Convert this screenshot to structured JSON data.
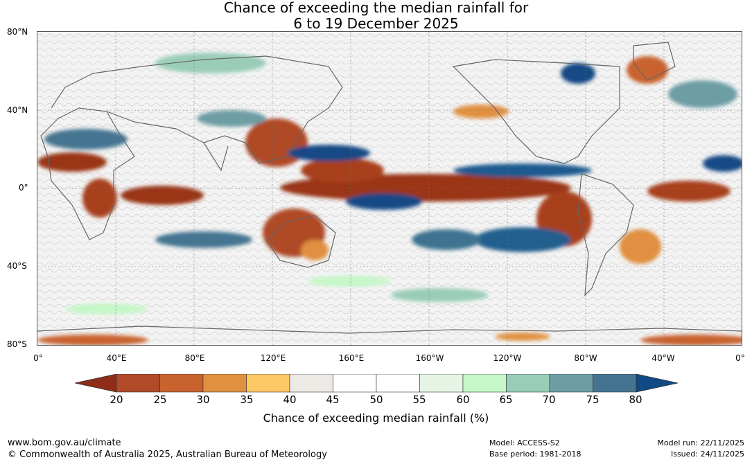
{
  "title": {
    "line1": "Chance of exceeding the median rainfall for",
    "line2": "6 to 19 December 2025"
  },
  "map": {
    "lat_labels": [
      "80°N",
      "40°N",
      "0°",
      "40°S",
      "80°S"
    ],
    "lon_labels": [
      "0°",
      "40°E",
      "80°E",
      "120°E",
      "160°E",
      "160°W",
      "120°W",
      "80°W",
      "40°W",
      "0°"
    ]
  },
  "colorbar": {
    "ticks": [
      "20",
      "25",
      "30",
      "35",
      "40",
      "45",
      "50",
      "55",
      "60",
      "65",
      "70",
      "75",
      "80"
    ],
    "under_color": "#8e2d18",
    "over_color": "#124a85",
    "bin_colors": [
      "#b04a28",
      "#c8622e",
      "#e0903f",
      "#fdc966",
      "#ede9e5",
      "#ffffff",
      "#ffffff",
      "#e6f4e6",
      "#c6f7c8",
      "#9acdb8",
      "#6d9ea4",
      "#457491"
    ],
    "label": "Chance of exceeding median rainfall (%)"
  },
  "footer": {
    "website": "www.bom.gov.au/climate",
    "copyright": "© Commonwealth of Australia 2025, Australian Bureau of Meteorology",
    "model": "Model: ACCESS-S2",
    "base_period": "Base period: 1981-2018",
    "model_run": "Model run: 22/11/2025",
    "issued": "Issued: 24/11/2025"
  }
}
